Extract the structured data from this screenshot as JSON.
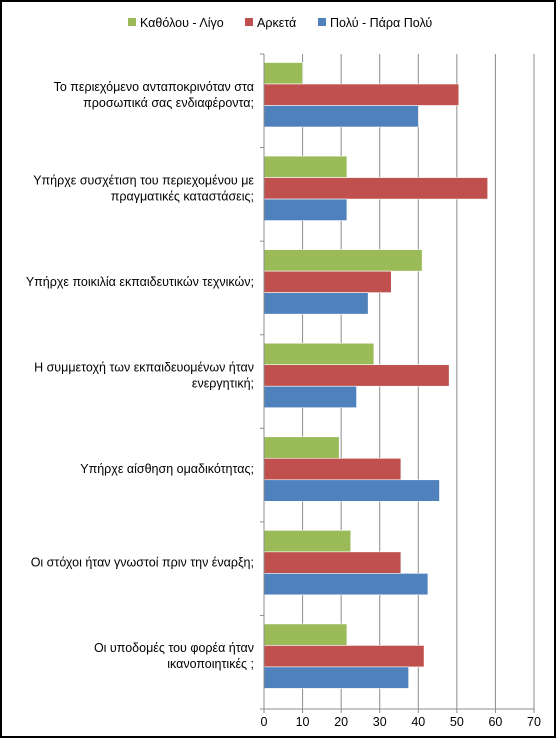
{
  "chart_data": {
    "type": "bar",
    "orientation": "horizontal",
    "categories": [
      [
        "Το περιεχόμενο ανταποκρινόταν στα",
        "προσωπικά σας ενδιαφέροντα;"
      ],
      [
        "Υπήρχε συσχέτιση του περιεχομένου με",
        "πραγματικές καταστάσεις;"
      ],
      [
        "Υπήρχε ποικιλία εκπαιδευτικών  τεχνικών;"
      ],
      [
        "Η συμμετοχή  των εκπαιδευομένων ήταν",
        "ενεργητική;"
      ],
      [
        "Υπήρχε αίσθηση ομαδικότητας;"
      ],
      [
        "Οι στόχοι ήταν γνωστοί πριν την έναρξη;"
      ],
      [
        "Οι υποδομές του φορέα ήταν",
        "ικανοποιητικές  ;"
      ]
    ],
    "series": [
      {
        "name": "Καθόλου - Λίγο",
        "color": "#9bbb59",
        "values": [
          10,
          21.5,
          41,
          28.5,
          19.5,
          22.5,
          21.5
        ]
      },
      {
        "name": "Αρκετά",
        "color": "#c0504d",
        "values": [
          50.5,
          58,
          33,
          48,
          35.5,
          35.5,
          41.5
        ]
      },
      {
        "name": "Πολύ - Πάρα Πολύ",
        "color": "#4f81bd",
        "values": [
          40,
          21.5,
          27,
          24,
          45.5,
          42.5,
          37.5
        ]
      }
    ],
    "xlim": [
      0,
      70
    ],
    "xticks": [
      "0",
      "10",
      "20",
      "30",
      "40",
      "50",
      "60",
      "70"
    ],
    "grid": true,
    "legend_position": "top"
  }
}
